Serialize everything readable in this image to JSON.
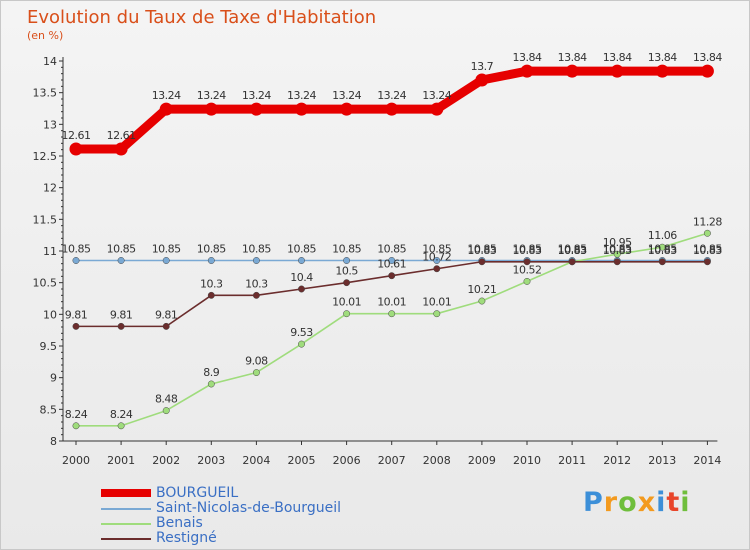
{
  "title": "Evolution du Taux de Taxe d'Habitation",
  "subtitle": "(en %)",
  "logo": {
    "letters": [
      "P",
      "r",
      "o",
      "x",
      "i",
      "t",
      "i"
    ],
    "colors": [
      "#3c8fd8",
      "#f39a1e",
      "#6fbe3c",
      "#f39a1e",
      "#3c8fd8",
      "#e8452a",
      "#6fbe3c"
    ]
  },
  "chart_data": {
    "type": "line",
    "x": [
      "2000",
      "2001",
      "2002",
      "2003",
      "2004",
      "2005",
      "2006",
      "2007",
      "2008",
      "2009",
      "2010",
      "2011",
      "2012",
      "2013",
      "2014"
    ],
    "ylim": [
      8,
      14
    ],
    "yticks": [
      "8",
      "8.5",
      "9",
      "9.5",
      "10",
      "10.5",
      "11",
      "11.5",
      "12",
      "12.5",
      "13",
      "13.5",
      "14"
    ],
    "grid": false,
    "legend_position": "bottom-left",
    "series": [
      {
        "name": "BOURGUEIL",
        "color": "#e60000",
        "values": [
          12.61,
          12.61,
          13.24,
          13.24,
          13.24,
          13.24,
          13.24,
          13.24,
          13.24,
          13.7,
          13.84,
          13.84,
          13.84,
          13.84,
          13.84
        ],
        "labels": [
          "12.61",
          "12.61",
          "13.24",
          "13.24",
          "13.24",
          "13.24",
          "13.24",
          "13.24",
          "13.24",
          "13.7",
          "13.84",
          "13.84",
          "13.84",
          "13.84",
          "13.84"
        ]
      },
      {
        "name": "Saint-Nicolas-de-Bourgueil",
        "color": "#7aa9d4",
        "values": [
          10.85,
          10.85,
          10.85,
          10.85,
          10.85,
          10.85,
          10.85,
          10.85,
          10.85,
          10.85,
          10.85,
          10.85,
          10.85,
          10.85,
          10.85
        ],
        "labels": [
          "10.85",
          "10.85",
          "10.85",
          "10.85",
          "10.85",
          "10.85",
          "10.85",
          "10.85",
          "10.85",
          "10.85",
          "10.85",
          "10.85",
          "10.85",
          "10.85",
          "10.85"
        ]
      },
      {
        "name": "Benais",
        "color": "#9fdc7c",
        "values": [
          8.24,
          8.24,
          8.48,
          8.9,
          9.08,
          9.53,
          10.01,
          10.01,
          10.01,
          10.21,
          10.52,
          10.83,
          10.95,
          11.06,
          11.28
        ],
        "labels": [
          "8.24",
          "8.24",
          "8.48",
          "8.9",
          "9.08",
          "9.53",
          "10.01",
          "10.01",
          "10.01",
          "10.21",
          "10.52",
          "10.83",
          "10.95",
          "11.06",
          "11.28"
        ]
      },
      {
        "name": "Restigné",
        "color": "#6b2d2d",
        "values": [
          9.81,
          9.81,
          9.81,
          10.3,
          10.3,
          10.4,
          10.5,
          10.61,
          10.72,
          10.83,
          10.83,
          10.83,
          10.83,
          10.83,
          10.83
        ],
        "labels": [
          "9.81",
          "9.81",
          "9.81",
          "10.3",
          "10.3",
          "10.4",
          "10.5",
          "10.61",
          "10.72",
          "10.83",
          "10.83",
          "10.83",
          "10.83",
          "10.83",
          "10.83"
        ]
      }
    ]
  }
}
